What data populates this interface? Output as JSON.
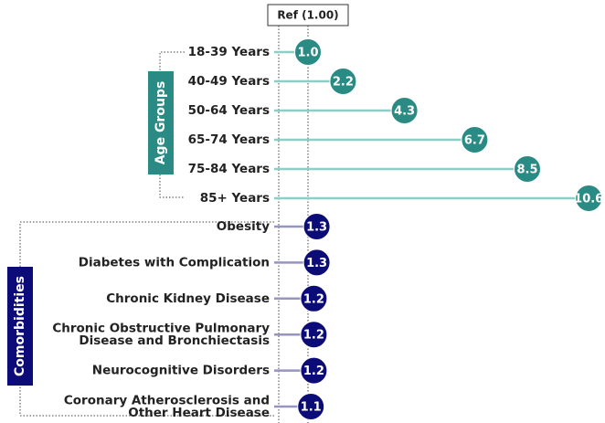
{
  "chart_data": {
    "type": "lollipop",
    "reference": {
      "value": 1.0,
      "label": "Ref (1.00)"
    },
    "xlim": [
      0,
      11
    ],
    "groups": [
      {
        "name": "Age Groups",
        "color": "#2a8a84",
        "line_color": "#8fcdc5",
        "categories": [
          "18-39 Years",
          "40-49 Years",
          "50-64 Years",
          "65-74 Years",
          "75-84 Years",
          "85+ Years"
        ],
        "values": [
          1.0,
          2.2,
          4.3,
          6.7,
          8.5,
          10.6
        ],
        "value_labels": [
          "1.0",
          "2.2",
          "4.3",
          "6.7",
          "8.5",
          "10.6"
        ]
      },
      {
        "name": "Comorbidities",
        "color": "#0c0c78",
        "line_color": "#9595c0",
        "categories": [
          "Obesity",
          "Diabetes with Complication",
          "Chronic Kidney Disease",
          "Chronic Obstructive Pulmonary\nDisease and Bronchiectasis",
          "Neurocognitive Disorders",
          "Coronary Atherosclerosis and\nOther Heart Disease"
        ],
        "values": [
          1.3,
          1.3,
          1.2,
          1.2,
          1.2,
          1.1
        ]
      }
    ]
  }
}
